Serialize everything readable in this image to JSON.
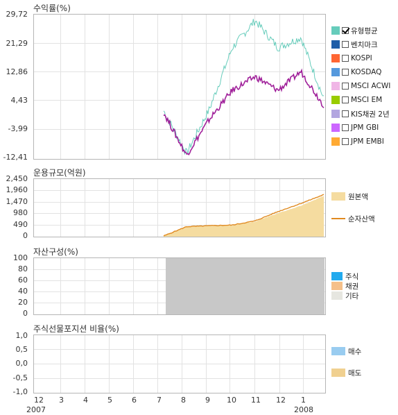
{
  "panels": {
    "returns": {
      "title": "수익률(%)",
      "yticks": [
        "29,72",
        "21,29",
        "12,86",
        "4,43",
        "-3,99",
        "-12,41"
      ],
      "legend": [
        {
          "label": "유형평균",
          "color": "#66ccbb",
          "checked": true
        },
        {
          "label": "벤치마크",
          "color": "#1f5ea8",
          "checked": false
        },
        {
          "label": "KOSPI",
          "color": "#ff6633",
          "checked": false
        },
        {
          "label": "KOSDAQ",
          "color": "#5599dd",
          "checked": false
        },
        {
          "label": "MSCI ACWI",
          "color": "#f0b6e6",
          "checked": false
        },
        {
          "label": "MSCI EM",
          "color": "#99cc00",
          "checked": false
        },
        {
          "label": "KIS채권 2년",
          "color": "#b3a6e0",
          "checked": false
        },
        {
          "label": "JPM GBI",
          "color": "#cc66ff",
          "checked": false
        },
        {
          "label": "JPM EMBI",
          "color": "#ffaa33",
          "checked": false
        }
      ]
    },
    "aum": {
      "title": "운용규모(억원)",
      "yticks": [
        "2,450",
        "1,960",
        "1,470",
        "980",
        "490",
        "0"
      ],
      "legend": [
        {
          "label": "원본액",
          "color": "#f5dca0"
        },
        {
          "label": "순자산액",
          "color": "#e08a20"
        }
      ]
    },
    "assets": {
      "title": "자산구성(%)",
      "yticks": [
        "100",
        "80",
        "60",
        "40",
        "20",
        "0"
      ],
      "legend": [
        {
          "label": "주식",
          "color": "#22aaee"
        },
        {
          "label": "채권",
          "color": "#f5c08a"
        },
        {
          "label": "기타",
          "color": "#e6e6e0"
        }
      ]
    },
    "futures": {
      "title": "주식선물포지션 비율(%)",
      "yticks": [
        "1,0",
        "0,5",
        "0,0",
        "-0,5",
        "-1,0"
      ],
      "legend": [
        {
          "label": "매수",
          "color": "#99ccf0"
        },
        {
          "label": "매도",
          "color": "#f0d090"
        }
      ]
    }
  },
  "x_axis": {
    "months": [
      "12",
      "3",
      "4",
      "5",
      "6",
      "7",
      "8",
      "9",
      "10",
      "11",
      "12",
      "1"
    ],
    "year_start": "2007",
    "year_end": "2008"
  },
  "chart_data": [
    {
      "type": "line",
      "title": "수익률(%)",
      "ylim": [
        -12.41,
        29.72
      ],
      "x": [
        "2007-07",
        "2007-08",
        "2007-09",
        "2007-10",
        "2007-11",
        "2007-12",
        "2008-01",
        "2008-02"
      ],
      "series": [
        {
          "name": "유형평균",
          "color": "#66ccbb",
          "values": [
            1.5,
            -11.0,
            2.0,
            20.0,
            28.0,
            20.0,
            23.0,
            5.0
          ]
        },
        {
          "name": "",
          "color": "#a0209a",
          "values": [
            1.0,
            -11.5,
            -1.0,
            7.5,
            11.5,
            7.5,
            13.0,
            3.0
          ]
        }
      ]
    },
    {
      "type": "area",
      "title": "운용규모(억원)",
      "ylim": [
        0,
        2450
      ],
      "x": [
        "2007-07",
        "2007-08",
        "2007-09",
        "2007-10",
        "2007-11",
        "2007-12",
        "2008-01",
        "2008-02"
      ],
      "series": [
        {
          "name": "원본액",
          "color": "#f5dca0",
          "values": [
            0,
            390,
            430,
            450,
            620,
            980,
            1300,
            1720
          ]
        },
        {
          "name": "순자산액",
          "color": "#e08a20",
          "values": [
            0,
            400,
            440,
            470,
            650,
            1050,
            1400,
            1780
          ]
        }
      ]
    },
    {
      "type": "area",
      "title": "자산구성(%)",
      "ylim": [
        0,
        100
      ],
      "x": [
        "2007-07",
        "2008-02"
      ],
      "series": [
        {
          "name": "기타",
          "color": "#c8c8c8",
          "values": [
            100,
            100
          ]
        }
      ]
    },
    {
      "type": "bar",
      "title": "주식선물포지션 비율(%)",
      "ylim": [
        -1.0,
        1.0
      ],
      "series": []
    }
  ]
}
